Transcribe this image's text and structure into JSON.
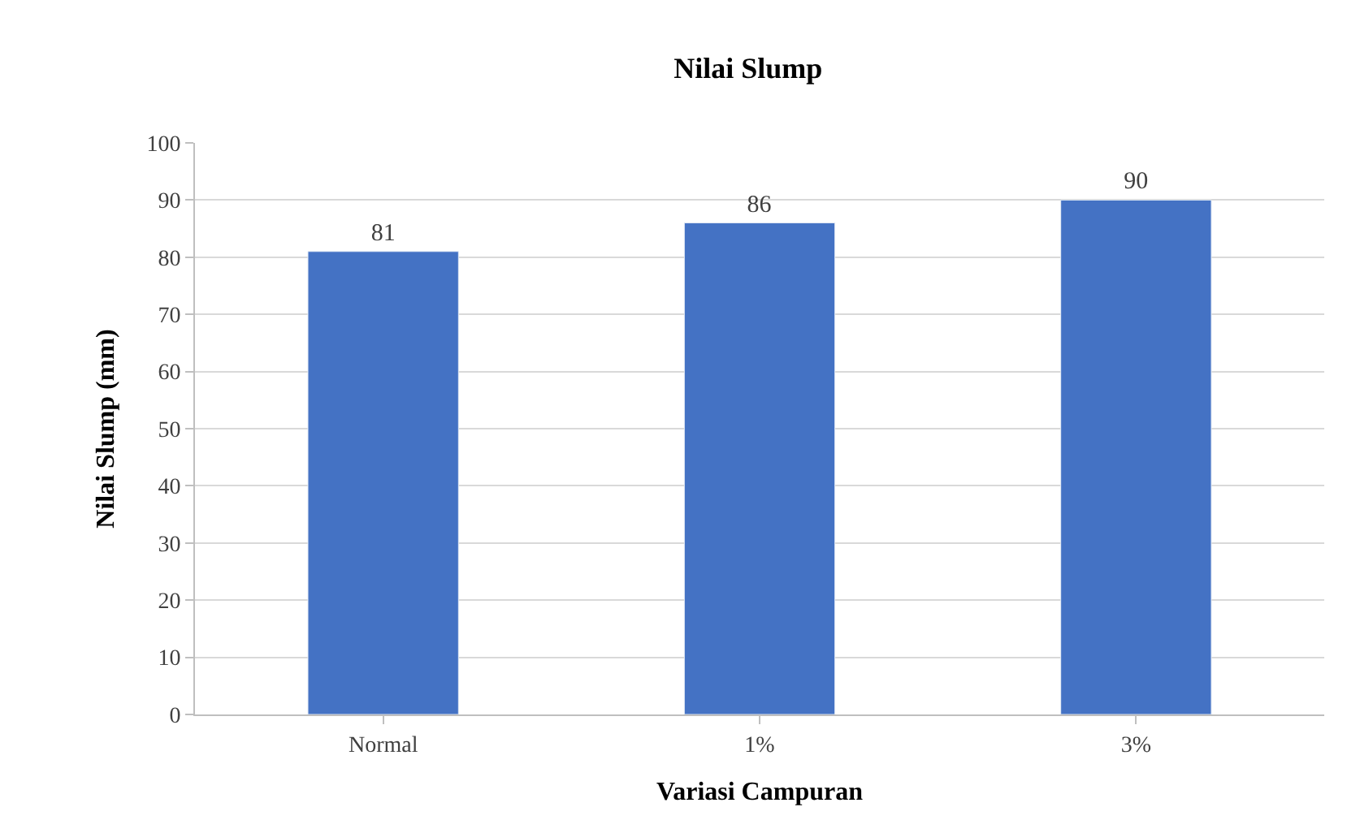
{
  "chart_data": {
    "type": "bar",
    "title": "Nilai Slump",
    "xlabel": "Variasi Campuran",
    "ylabel": "Nilai Slump (mm)",
    "categories": [
      "Normal",
      "1%",
      "3%"
    ],
    "values": [
      81,
      86,
      90
    ],
    "color": "#4472c4",
    "ylim": [
      0,
      100
    ],
    "yticks": [
      0,
      10,
      20,
      30,
      40,
      50,
      60,
      70,
      80,
      90,
      100
    ],
    "grid": "y",
    "data_labels": true
  }
}
